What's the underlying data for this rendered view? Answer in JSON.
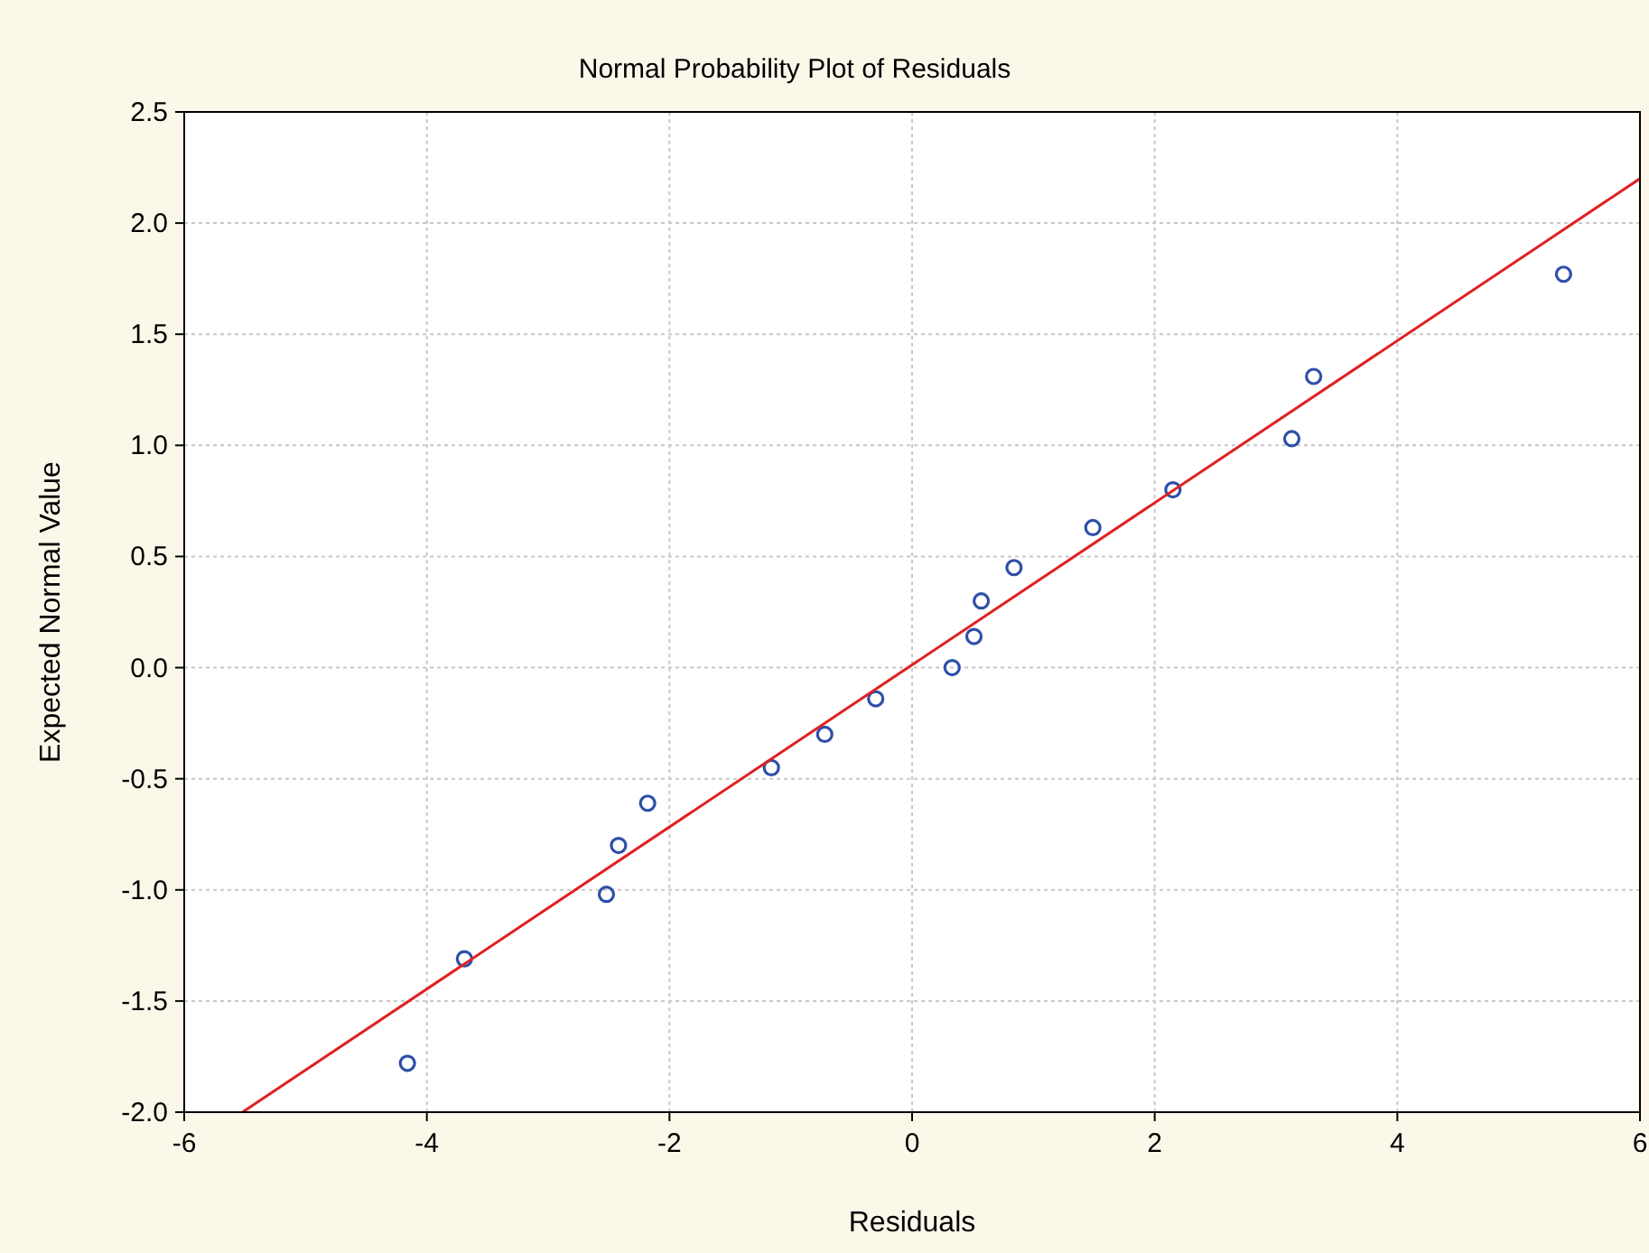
{
  "chart_data": {
    "type": "scatter",
    "title": "Normal Probability Plot of Residuals",
    "xlabel": "Residuals",
    "ylabel": "Expected Normal Value",
    "xlim": [
      -6,
      6
    ],
    "xticks": [
      -6,
      -4,
      -2,
      0,
      2,
      4,
      6
    ],
    "ylim": [
      -2,
      2.5
    ],
    "yticks": [
      {
        "value": -2,
        "label": "-2.0"
      },
      {
        "value": -1.5,
        "label": "-1.5"
      },
      {
        "value": -1,
        "label": "-1.0"
      },
      {
        "value": -0.5,
        "label": "-0.5"
      },
      {
        "value": 0,
        "label": "0.0"
      },
      {
        "value": 0.5,
        "label": "0.5"
      },
      {
        "value": 1,
        "label": "1.0"
      },
      {
        "value": 1.5,
        "label": "1.5"
      },
      {
        "value": 2,
        "label": "2.0"
      },
      {
        "value": 2.5,
        "label": "2.5"
      }
    ],
    "grid": true,
    "series": [
      {
        "color": "#2e4fa8",
        "marker": "circle",
        "x": [
          -4.16,
          -3.69,
          -2.52,
          -2.42,
          -2.18,
          -1.16,
          -0.72,
          -0.3,
          0.33,
          0.51,
          0.57,
          0.84,
          1.49,
          2.15,
          3.13,
          3.31,
          5.37
        ],
        "values": [
          -1.78,
          -1.31,
          -1.02,
          -0.8,
          -0.61,
          -0.45,
          -0.3,
          -0.14,
          0,
          0.14,
          0.3,
          0.45,
          0.63,
          0.8,
          1.03,
          1.31,
          1.77
        ]
      },
      {
        "type": "line",
        "color": "#e02020",
        "line_style": "solid",
        "x": [
          -5.52,
          6
        ],
        "values": [
          -2,
          2.2
        ]
      }
    ]
  }
}
